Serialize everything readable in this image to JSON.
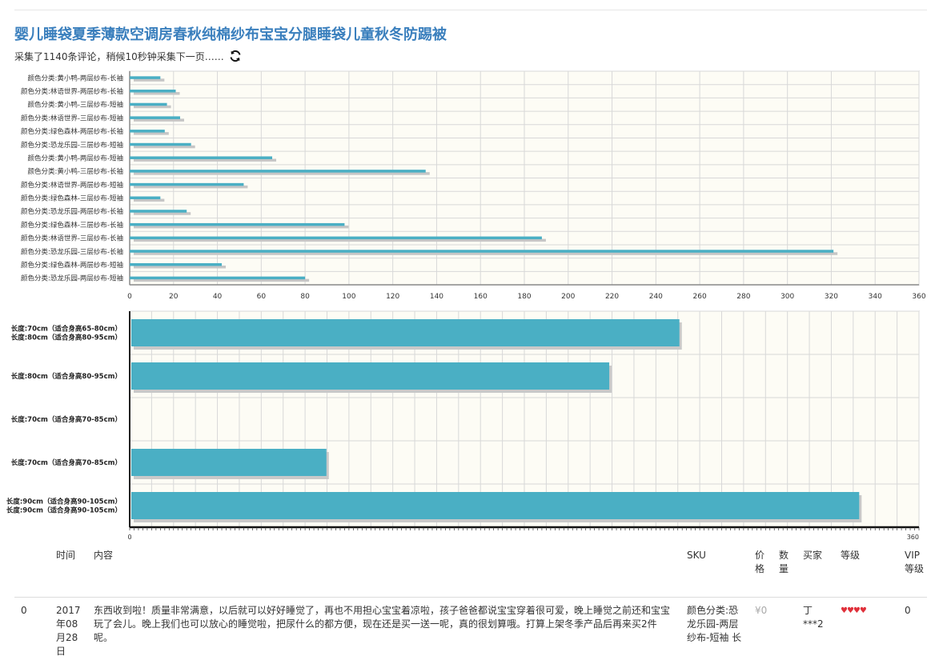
{
  "page": {
    "title": "婴儿睡袋夏季薄款空调房春秋纯棉纱布宝宝分腿睡袋儿童秋冬防踢被",
    "subtitle": "采集了1140条评论，稍候10秒钟采集下一页……"
  },
  "chart_data": [
    {
      "type": "bar",
      "orientation": "horizontal",
      "categories": [
        "颜色分类:黄小鸭-两层纱布-长袖",
        "颜色分类:林语世界-两层纱布-长袖",
        "颜色分类:黄小鸭-三层纱布-短袖",
        "颜色分类:林语世界-三层纱布-短袖",
        "颜色分类:绿色森林-两层纱布-长袖",
        "颜色分类:恐龙乐园-三层纱布-短袖",
        "颜色分类:黄小鸭-两层纱布-短袖",
        "颜色分类:黄小鸭-三层纱布-长袖",
        "颜色分类:林语世界-两层纱布-短袖",
        "颜色分类:绿色森林-三层纱布-短袖",
        "颜色分类:恐龙乐园-两层纱布-长袖",
        "颜色分类:绿色森林-三层纱布-长袖",
        "颜色分类:林语世界-三层纱布-长袖",
        "颜色分类:恐龙乐园-三层纱布-长袖",
        "颜色分类:绿色森林-两层纱布-短袖",
        "颜色分类:恐龙乐园-两层纱布-短袖"
      ],
      "values": [
        14,
        21,
        17,
        23,
        16,
        28,
        65,
        135,
        52,
        14,
        26,
        98,
        188,
        321,
        42,
        80
      ],
      "xlim": [
        0,
        360
      ],
      "xticks": [
        0,
        20,
        40,
        60,
        80,
        100,
        120,
        140,
        160,
        180,
        200,
        220,
        240,
        260,
        280,
        300,
        320,
        340,
        360
      ],
      "grid": true,
      "colors": {
        "bar": "#4aafc4",
        "background": "#fdfcf5",
        "grid": "#d8d8d8"
      }
    },
    {
      "type": "bar",
      "orientation": "horizontal",
      "categories": [
        [
          "长度:70cm（适合身高65-80cm）",
          "长度:80cm（适合身高80-95cm）"
        ],
        [
          "长度:80cm（适合身高80-95cm）"
        ],
        [
          "长度:70cm（适合身高70-85cm）"
        ],
        [
          "长度:70cm（适合身高70-85cm）"
        ],
        [
          "长度:90cm（适合身高90-105cm）",
          "长度:90cm（适合身高90-105cm）"
        ]
      ],
      "bars": [
        {
          "row": 0,
          "value": 250
        },
        {
          "row": 1,
          "value": 218
        },
        {
          "row": 3,
          "value": 89
        },
        {
          "row": 4,
          "value": 332
        }
      ],
      "xlim": [
        0,
        360
      ],
      "xticks": [
        0,
        360
      ],
      "grid": true,
      "colors": {
        "bar": "#4aafc4",
        "background": "#fdfcf5",
        "grid": "#d8d8d8"
      }
    }
  ],
  "table": {
    "headers": {
      "time": "时间",
      "content": "内容",
      "sku": "SKU",
      "price": "价格",
      "qty": "数量",
      "buyer": "买家",
      "level": "等级",
      "vip": "VIP等级"
    },
    "rows": [
      {
        "index": "0",
        "time": "2017年08月28日",
        "content": "东西收到啦！质量非常满意，以后就可以好好睡觉了，再也不用担心宝宝着凉啦，孩子爸爸都说宝宝穿着很可爱，晚上睡觉之前还和宝宝玩了会儿。晚上我们也可以放心的睡觉啦，把尿什么的都方便，现在还是买一送一呢，真的很划算哦。打算上架冬季产品后再来买2件呢。",
        "sku": "颜色分类:恐龙乐园-两层纱布-短袖 长",
        "price": "¥0",
        "qty": "",
        "buyer": "丁***2",
        "level": "♥♥♥♥",
        "vip": "0"
      }
    ]
  }
}
